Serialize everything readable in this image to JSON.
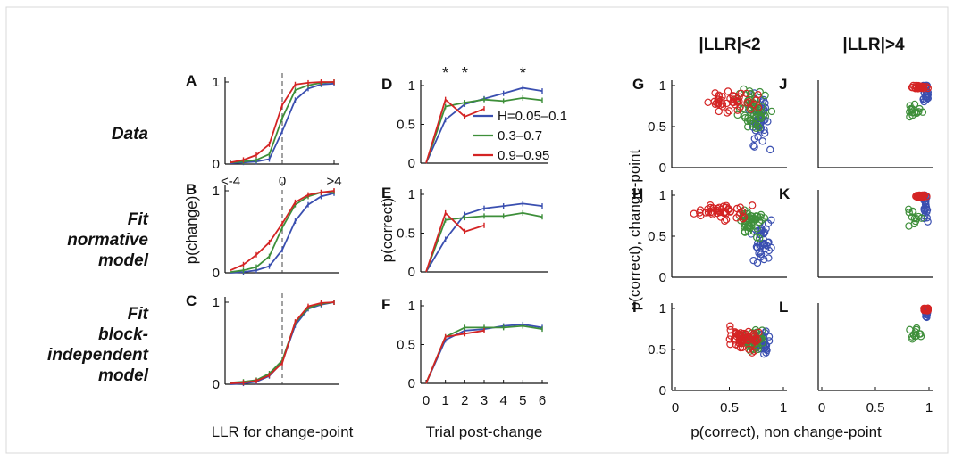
{
  "colors": {
    "blue": "#3a4fb0",
    "green": "#3e8f3a",
    "red": "#d42424",
    "axis": "#111111"
  },
  "row_labels": [
    [
      "Data"
    ],
    [
      "Fit",
      "normative",
      "model"
    ],
    [
      "Fit",
      "block-",
      "independent",
      "model"
    ]
  ],
  "column_titles": {
    "g": "|LLR|<2",
    "j": "|LLR|>4"
  },
  "axis_labels": {
    "left_y": "p(change)",
    "left_x": "LLR for change-point",
    "mid_y": "p(correct)",
    "mid_x": "Trial post-change",
    "right_y": "p(correct), change-point",
    "right_x": "p(correct), non change-point"
  },
  "legend": [
    "H=0.05–0.1",
    "0.3–0.7",
    "0.9–0.95"
  ],
  "chart_data": [
    {
      "panel": "A",
      "type": "line",
      "xticks": [
        "<-4",
        "0",
        ">4"
      ],
      "yticks": [
        "0",
        "1"
      ],
      "ylim": [
        0,
        1
      ],
      "dashed_x": 4,
      "x": [
        0,
        1,
        2,
        3,
        4,
        5,
        6,
        7,
        8
      ],
      "series": [
        {
          "color": "blue",
          "values": [
            0.01,
            0.02,
            0.03,
            0.06,
            0.4,
            0.78,
            0.92,
            0.97,
            0.98
          ]
        },
        {
          "color": "green",
          "values": [
            0.02,
            0.03,
            0.05,
            0.12,
            0.56,
            0.9,
            0.96,
            0.99,
            1.0
          ]
        },
        {
          "color": "red",
          "values": [
            0.02,
            0.05,
            0.11,
            0.24,
            0.72,
            0.97,
            0.99,
            1.0,
            1.0
          ]
        }
      ]
    },
    {
      "panel": "B",
      "type": "line",
      "xticks": [],
      "yticks": [
        "0",
        "1"
      ],
      "ylim": [
        0,
        1
      ],
      "dashed_x": 4,
      "x": [
        0,
        1,
        2,
        3,
        4,
        5,
        6,
        7,
        8
      ],
      "series": [
        {
          "color": "blue",
          "values": [
            0.0,
            0.01,
            0.03,
            0.08,
            0.28,
            0.63,
            0.83,
            0.93,
            0.97
          ]
        },
        {
          "color": "green",
          "values": [
            0.01,
            0.03,
            0.07,
            0.2,
            0.55,
            0.83,
            0.93,
            0.98,
            0.99
          ]
        },
        {
          "color": "red",
          "values": [
            0.03,
            0.1,
            0.22,
            0.37,
            0.6,
            0.86,
            0.95,
            0.98,
            1.0
          ]
        }
      ]
    },
    {
      "panel": "C",
      "type": "line",
      "xticks": [],
      "yticks": [
        "0",
        "1"
      ],
      "ylim": [
        0,
        1
      ],
      "dashed_x": 4,
      "x": [
        0,
        1,
        2,
        3,
        4,
        5,
        6,
        7,
        8
      ],
      "series": [
        {
          "color": "blue",
          "values": [
            0.0,
            0.01,
            0.03,
            0.1,
            0.27,
            0.72,
            0.92,
            0.97,
            1.0
          ]
        },
        {
          "color": "green",
          "values": [
            0.02,
            0.03,
            0.05,
            0.13,
            0.29,
            0.75,
            0.93,
            0.98,
            1.0
          ]
        },
        {
          "color": "red",
          "values": [
            0.01,
            0.02,
            0.04,
            0.11,
            0.26,
            0.76,
            0.95,
            0.99,
            1.0
          ]
        }
      ]
    },
    {
      "panel": "D",
      "type": "line",
      "xticks": [],
      "yticks": [
        "0",
        "0.5",
        "1"
      ],
      "ylim": [
        0,
        1
      ],
      "stars_x": [
        1,
        2,
        5
      ],
      "series": [
        {
          "color": "blue",
          "x": [
            0,
            1,
            2,
            3,
            4,
            5,
            6
          ],
          "values": [
            0.0,
            0.56,
            0.76,
            0.83,
            0.9,
            0.97,
            0.93
          ]
        },
        {
          "color": "green",
          "x": [
            0,
            1,
            2,
            3,
            4,
            5,
            6
          ],
          "values": [
            0.0,
            0.73,
            0.78,
            0.82,
            0.8,
            0.84,
            0.81
          ]
        },
        {
          "color": "red",
          "x": [
            0,
            1,
            2,
            3
          ],
          "values": [
            0.0,
            0.82,
            0.6,
            0.7
          ]
        }
      ]
    },
    {
      "panel": "E",
      "type": "line",
      "xticks": [],
      "yticks": [
        "0",
        "0.5",
        "1"
      ],
      "ylim": [
        0,
        1
      ],
      "series": [
        {
          "color": "blue",
          "x": [
            0,
            1,
            2,
            3,
            4,
            5,
            6
          ],
          "values": [
            0.0,
            0.42,
            0.74,
            0.82,
            0.85,
            0.88,
            0.85
          ]
        },
        {
          "color": "green",
          "x": [
            0,
            1,
            2,
            3,
            4,
            5,
            6
          ],
          "values": [
            0.0,
            0.67,
            0.7,
            0.72,
            0.72,
            0.76,
            0.71
          ]
        },
        {
          "color": "red",
          "x": [
            0,
            1,
            2,
            3
          ],
          "values": [
            0.0,
            0.76,
            0.52,
            0.6
          ]
        }
      ]
    },
    {
      "panel": "F",
      "type": "line",
      "xticks": [
        "0",
        "1",
        "2",
        "3",
        "4",
        "5",
        "6"
      ],
      "yticks": [
        "0",
        "0.5",
        "1"
      ],
      "ylim": [
        0,
        1
      ],
      "series": [
        {
          "color": "blue",
          "x": [
            0,
            1,
            2,
            3,
            4,
            5,
            6
          ],
          "values": [
            0.0,
            0.56,
            0.68,
            0.7,
            0.74,
            0.76,
            0.72
          ]
        },
        {
          "color": "green",
          "x": [
            0,
            1,
            2,
            3,
            4,
            5,
            6
          ],
          "values": [
            0.0,
            0.6,
            0.72,
            0.72,
            0.72,
            0.74,
            0.7
          ]
        },
        {
          "color": "red",
          "x": [
            0,
            1,
            2,
            3
          ],
          "values": [
            0.0,
            0.6,
            0.64,
            0.68
          ]
        }
      ]
    },
    {
      "panel": "G",
      "type": "scatter",
      "xticks": [],
      "yticks": [
        "0",
        "0.5",
        "1"
      ],
      "xlim": [
        0,
        1
      ],
      "ylim": [
        0,
        1
      ]
    },
    {
      "panel": "H",
      "type": "scatter",
      "xticks": [],
      "yticks": [
        "0",
        "0.5",
        "1"
      ],
      "xlim": [
        0,
        1
      ],
      "ylim": [
        0,
        1
      ]
    },
    {
      "panel": "I",
      "type": "scatter",
      "xticks": [
        "0",
        "0.5",
        "1"
      ],
      "yticks": [
        "0",
        "0.5",
        "1"
      ],
      "xlim": [
        0,
        1
      ],
      "ylim": [
        0,
        1
      ]
    },
    {
      "panel": "J",
      "type": "scatter",
      "xticks": [],
      "yticks": [],
      "xlim": [
        0,
        1
      ],
      "ylim": [
        0,
        1
      ]
    },
    {
      "panel": "K",
      "type": "scatter",
      "xticks": [],
      "yticks": [],
      "xlim": [
        0,
        1
      ],
      "ylim": [
        0,
        1
      ]
    },
    {
      "panel": "L",
      "type": "scatter",
      "xticks": [
        "0",
        "0.5",
        "1"
      ],
      "yticks": [],
      "xlim": [
        0,
        1
      ],
      "ylim": [
        0,
        1
      ]
    }
  ]
}
